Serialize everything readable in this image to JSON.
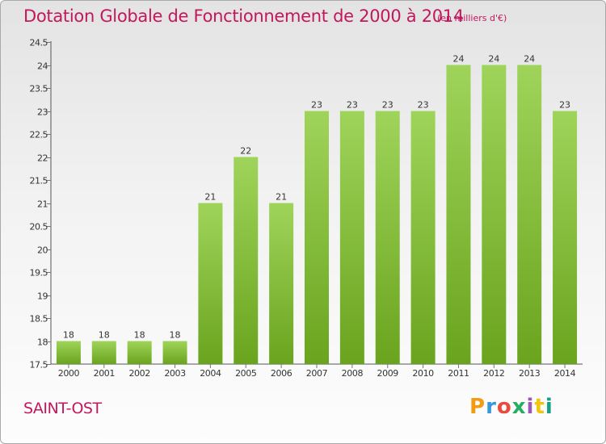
{
  "header": {
    "title": "Dotation Globale de Fonctionnement de 2000 à 2014",
    "unit": "(en milliers d'€)"
  },
  "footer": {
    "commune": "SAINT-OST",
    "brand": "Proxiti",
    "brand_colors": [
      "#f39c12",
      "#3498db",
      "#e74c3c",
      "#27ae60",
      "#9b59b6",
      "#f1c40f",
      "#16a085"
    ]
  },
  "colors": {
    "title": "#c2185b",
    "bar_light": "#9fd45a",
    "bar_dark": "#6aa41e",
    "axis": "#555555",
    "grid_tick": "#777777"
  },
  "chart_data": {
    "type": "bar",
    "categories": [
      "2000",
      "2001",
      "2002",
      "2003",
      "2004",
      "2005",
      "2006",
      "2007",
      "2008",
      "2009",
      "2010",
      "2011",
      "2012",
      "2013",
      "2014"
    ],
    "values": [
      18,
      18,
      18,
      18,
      21,
      22,
      21,
      23,
      23,
      23,
      23,
      24,
      24,
      24,
      23
    ],
    "data_labels": [
      "18",
      "18",
      "18",
      "18",
      "21",
      "22",
      "21",
      "23",
      "23",
      "23",
      "23",
      "24",
      "24",
      "24",
      "23"
    ],
    "title": "Dotation Globale de Fonctionnement de 2000 à 2014",
    "ylabel": "",
    "xlabel": "",
    "ylim": [
      17.5,
      24.5
    ],
    "yticks": [
      17.5,
      18,
      18.5,
      19,
      19.5,
      20,
      20.5,
      21,
      21.5,
      22,
      22.5,
      23,
      23.5,
      24,
      24.5
    ],
    "ytick_labels": [
      "17.5",
      "18",
      "18.5",
      "19",
      "19.5",
      "20",
      "20.5",
      "21",
      "21.5",
      "22",
      "22.5",
      "23",
      "23.5",
      "24",
      "24.5"
    ],
    "grid": false,
    "legend": "none"
  }
}
